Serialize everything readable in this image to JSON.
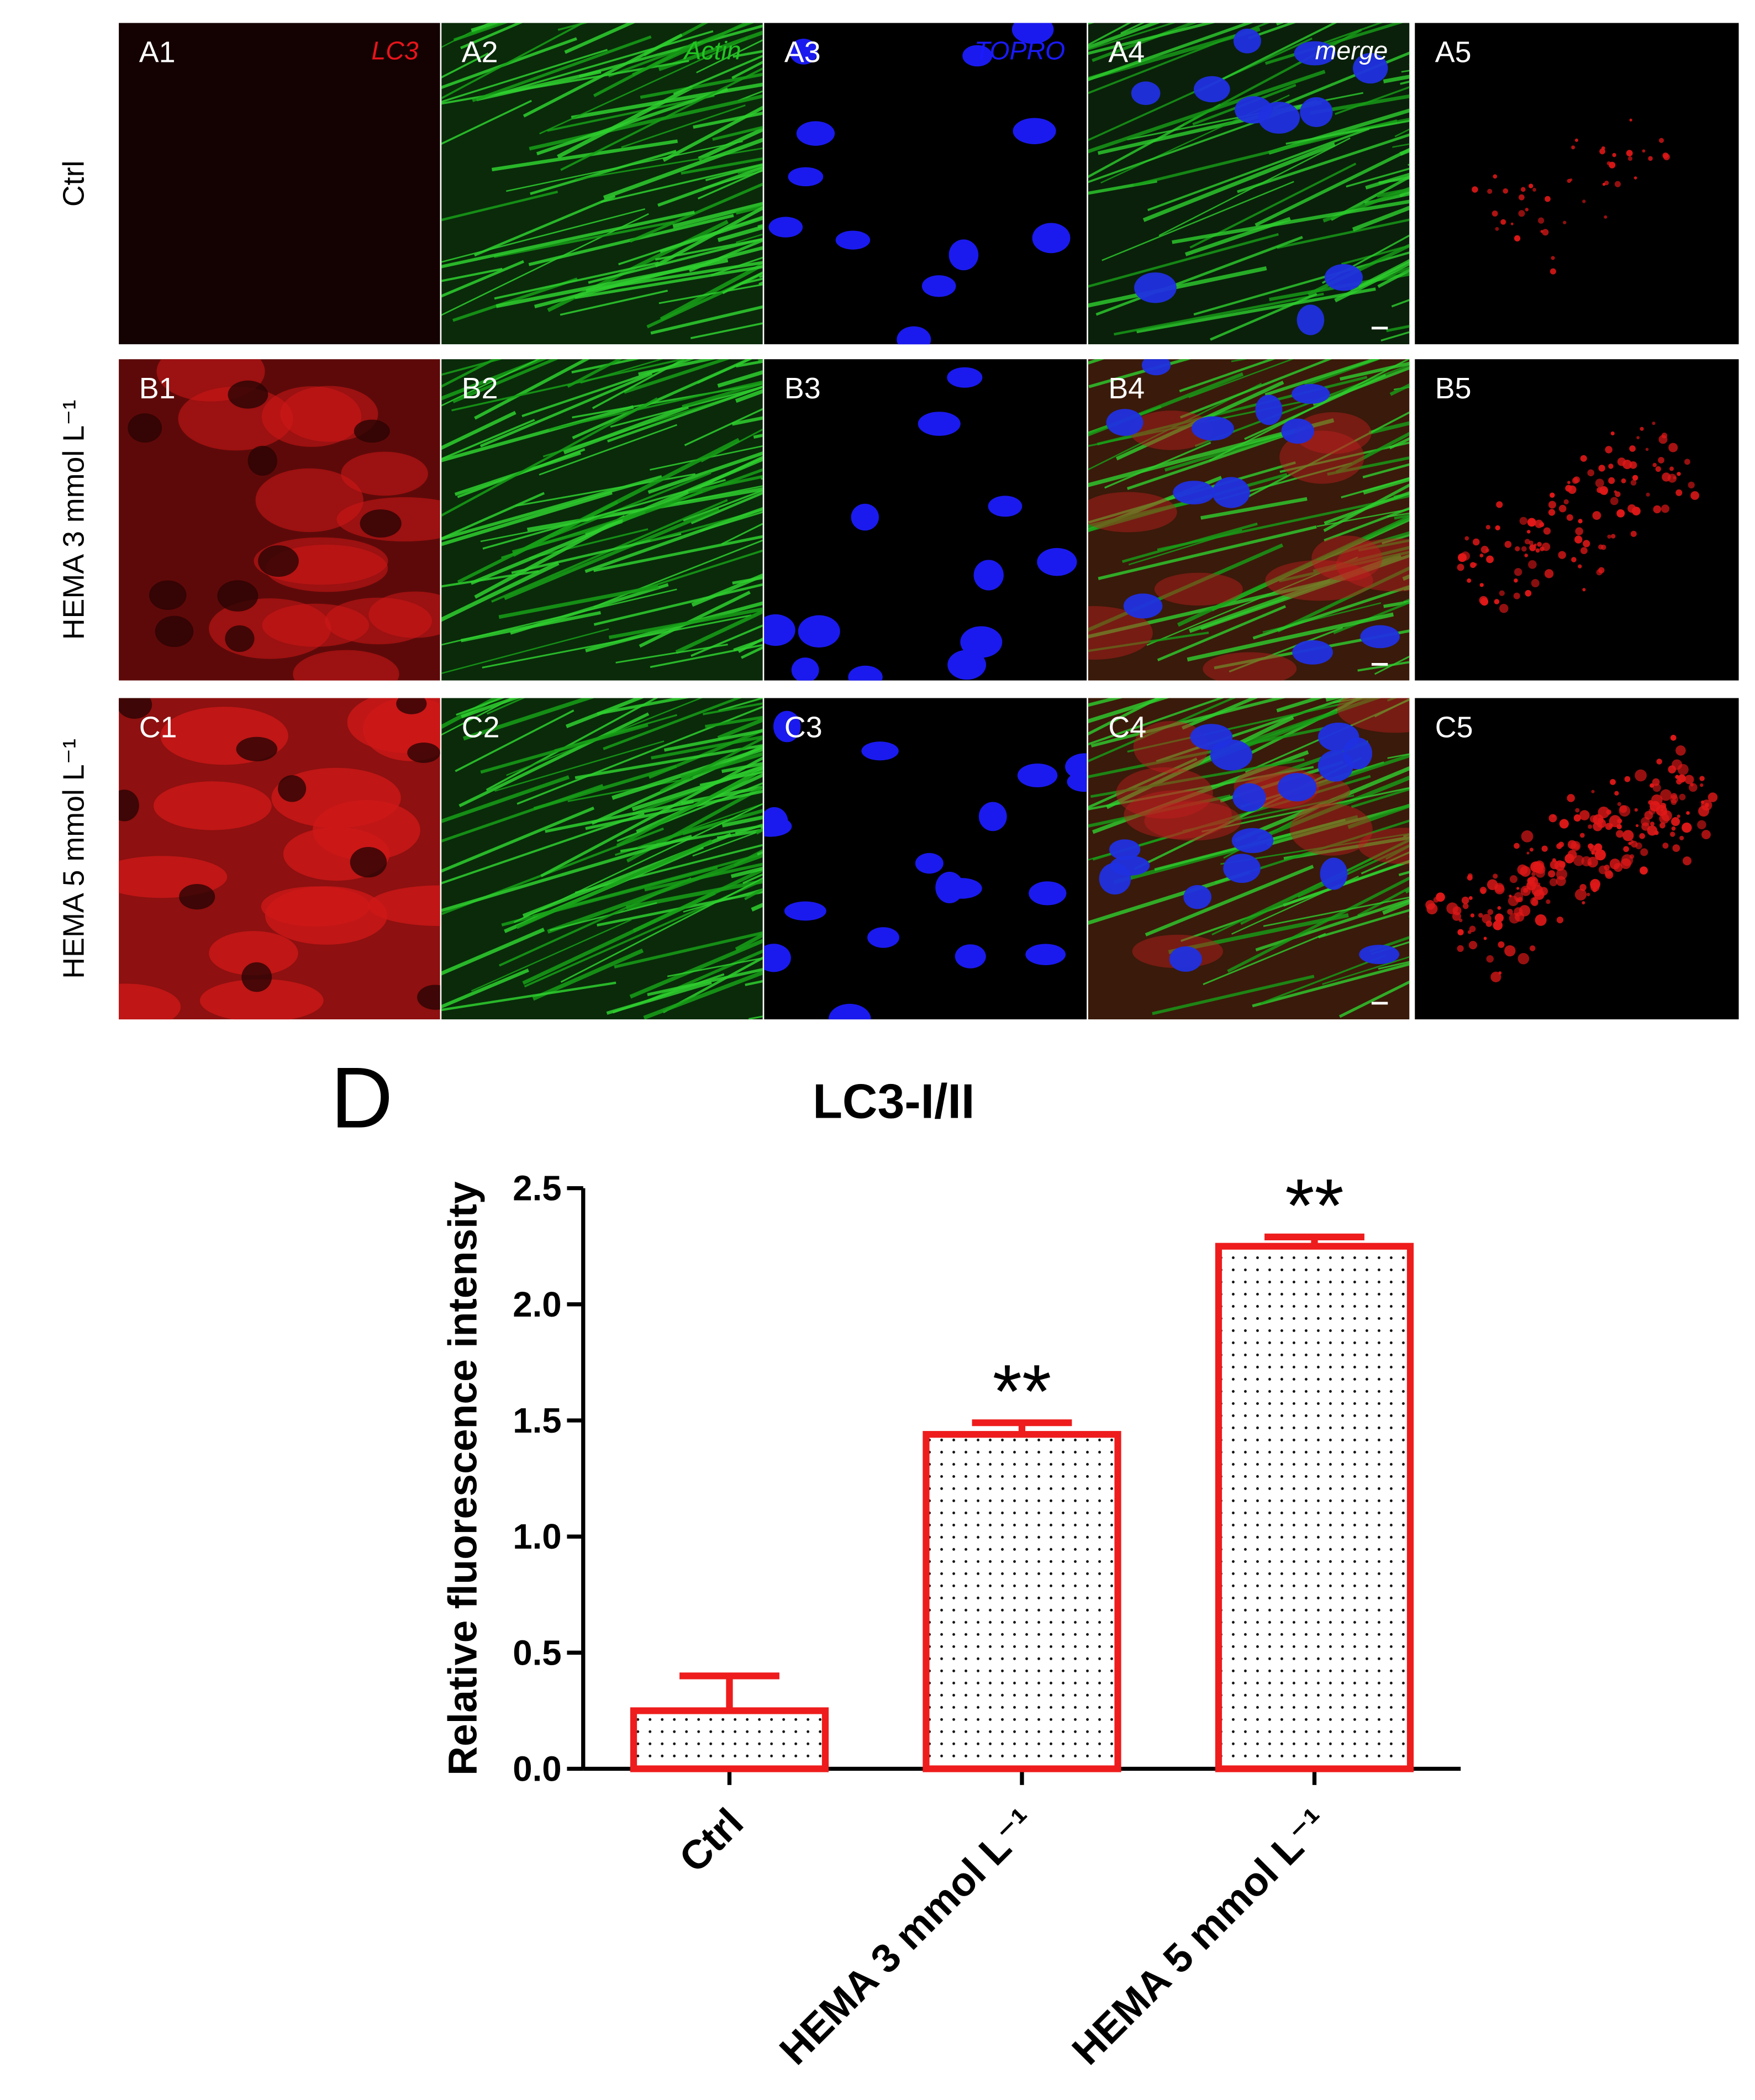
{
  "panels": {
    "rows": [
      {
        "label": "Ctrl",
        "cells": [
          "A1",
          "A2",
          "A3",
          "A4",
          "A5"
        ]
      },
      {
        "label": "HEMA 3 mmol L⁻¹",
        "cells": [
          "B1",
          "B2",
          "B3",
          "B4",
          "B5"
        ]
      },
      {
        "label": "HEMA 5 mmol L⁻¹",
        "cells": [
          "C1",
          "C2",
          "C3",
          "C4",
          "C5"
        ]
      }
    ],
    "channels": [
      {
        "text": "LC3",
        "color": "#e8141b"
      },
      {
        "text": "Actin",
        "color": "#22c522"
      },
      {
        "text": "TOPRO",
        "color": "#1a1aff"
      },
      {
        "text": "merge",
        "color": "#ffffff"
      }
    ]
  },
  "chart_data": {
    "type": "bar",
    "panel_letter": "D",
    "title": "LC3-I/II",
    "y_label": "Relative fluorescence intensity",
    "categories": [
      "Ctrl",
      "HEMA 3 mmol L⁻¹",
      "HEMA 5 mmol L⁻¹"
    ],
    "values": [
      0.25,
      1.44,
      2.25
    ],
    "errors": [
      0.15,
      0.05,
      0.04
    ],
    "annotations": [
      null,
      "**",
      "**"
    ],
    "color": "#ee1c1c",
    "ylim": [
      0,
      2.5
    ],
    "yticks": [
      {
        "value": 0,
        "label": "0.0"
      },
      0.5,
      {
        "value": 1,
        "label": "1.0"
      },
      1.5,
      {
        "value": 2,
        "label": "2.0"
      },
      2.5
    ],
    "grid": false
  }
}
